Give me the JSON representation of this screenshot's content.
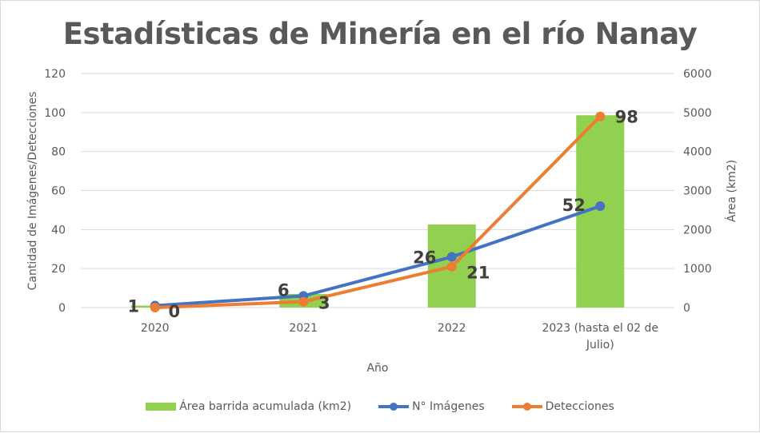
{
  "chart_data": {
    "type": "bar-line-combo",
    "title": "Estadísticas de Minería en el río Nanay",
    "xlabel": "Año",
    "ylabel_left": "Cantidad de Imágenes/Detecciones",
    "ylabel_right": "Área (km2)",
    "categories": [
      "2020",
      "2021",
      "2022",
      "2023 (hasta el 02 de Julio)"
    ],
    "ylim_left": [
      0,
      120
    ],
    "yticks_left": [
      0,
      20,
      40,
      60,
      80,
      100,
      120
    ],
    "ylim_right": [
      0,
      6000
    ],
    "yticks_right": [
      0,
      1000,
      2000,
      3000,
      4000,
      5000,
      6000
    ],
    "grid": true,
    "legend_position": "bottom",
    "series": [
      {
        "name": "Área barrida acumulada (km2)",
        "type": "bar",
        "axis": "right",
        "color": "#92d050",
        "values": [
          50,
          350,
          2130,
          4930
        ]
      },
      {
        "name": "N° Imágenes",
        "type": "line",
        "axis": "left",
        "color": "#4472c4",
        "values": [
          1,
          6,
          26,
          52
        ],
        "labels": [
          "1",
          "6",
          "26",
          "52"
        ]
      },
      {
        "name": "Detecciones",
        "type": "line",
        "axis": "left",
        "color": "#ed7d31",
        "values": [
          0,
          3,
          21,
          98
        ],
        "labels": [
          "0",
          "3",
          "21",
          "98"
        ]
      }
    ]
  }
}
